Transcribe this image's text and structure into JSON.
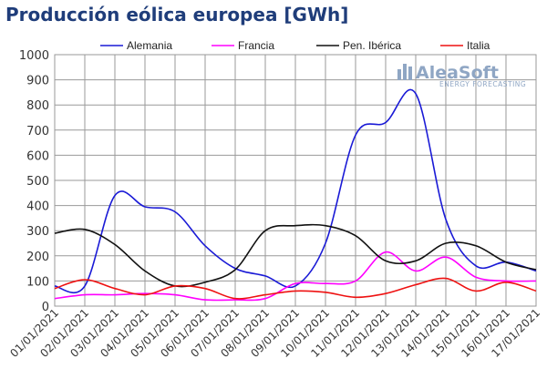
{
  "chart_data": {
    "type": "line",
    "title": "Producción eólica europea [GWh]",
    "xlabel": "",
    "ylabel": "",
    "ylim": [
      0,
      1000
    ],
    "yticks": [
      0,
      100,
      200,
      300,
      400,
      500,
      600,
      700,
      800,
      900,
      1000
    ],
    "grid": true,
    "legend_position": "top",
    "x": [
      "01/01/2021",
      "02/01/2021",
      "03/01/2021",
      "04/01/2021",
      "05/01/2021",
      "06/01/2021",
      "07/01/2021",
      "08/01/2021",
      "09/01/2021",
      "10/01/2021",
      "11/01/2021",
      "12/01/2021",
      "13/01/2021",
      "14/01/2021",
      "15/01/2021",
      "16/01/2021",
      "17/01/2021"
    ],
    "series": [
      {
        "name": "Alemania",
        "color": "#1a1ad6",
        "values": [
          80,
          80,
          440,
          395,
          375,
          240,
          150,
          120,
          80,
          250,
          680,
          730,
          845,
          345,
          160,
          175,
          140
        ]
      },
      {
        "name": "Francia",
        "color": "#ff00ff",
        "values": [
          30,
          45,
          45,
          50,
          45,
          25,
          25,
          30,
          90,
          90,
          100,
          215,
          140,
          195,
          115,
          100,
          100
        ]
      },
      {
        "name": "Pen. Ibérica",
        "color": "#111111",
        "values": [
          290,
          305,
          245,
          140,
          80,
          95,
          145,
          300,
          320,
          320,
          280,
          180,
          180,
          250,
          240,
          175,
          145
        ]
      },
      {
        "name": "Italia",
        "color": "#ee1111",
        "values": [
          70,
          105,
          70,
          45,
          80,
          70,
          30,
          45,
          60,
          55,
          35,
          50,
          85,
          110,
          60,
          95,
          60
        ]
      }
    ]
  },
  "logo": {
    "name": "AleaSoft",
    "tagline": "ENERGY FORECASTING"
  }
}
